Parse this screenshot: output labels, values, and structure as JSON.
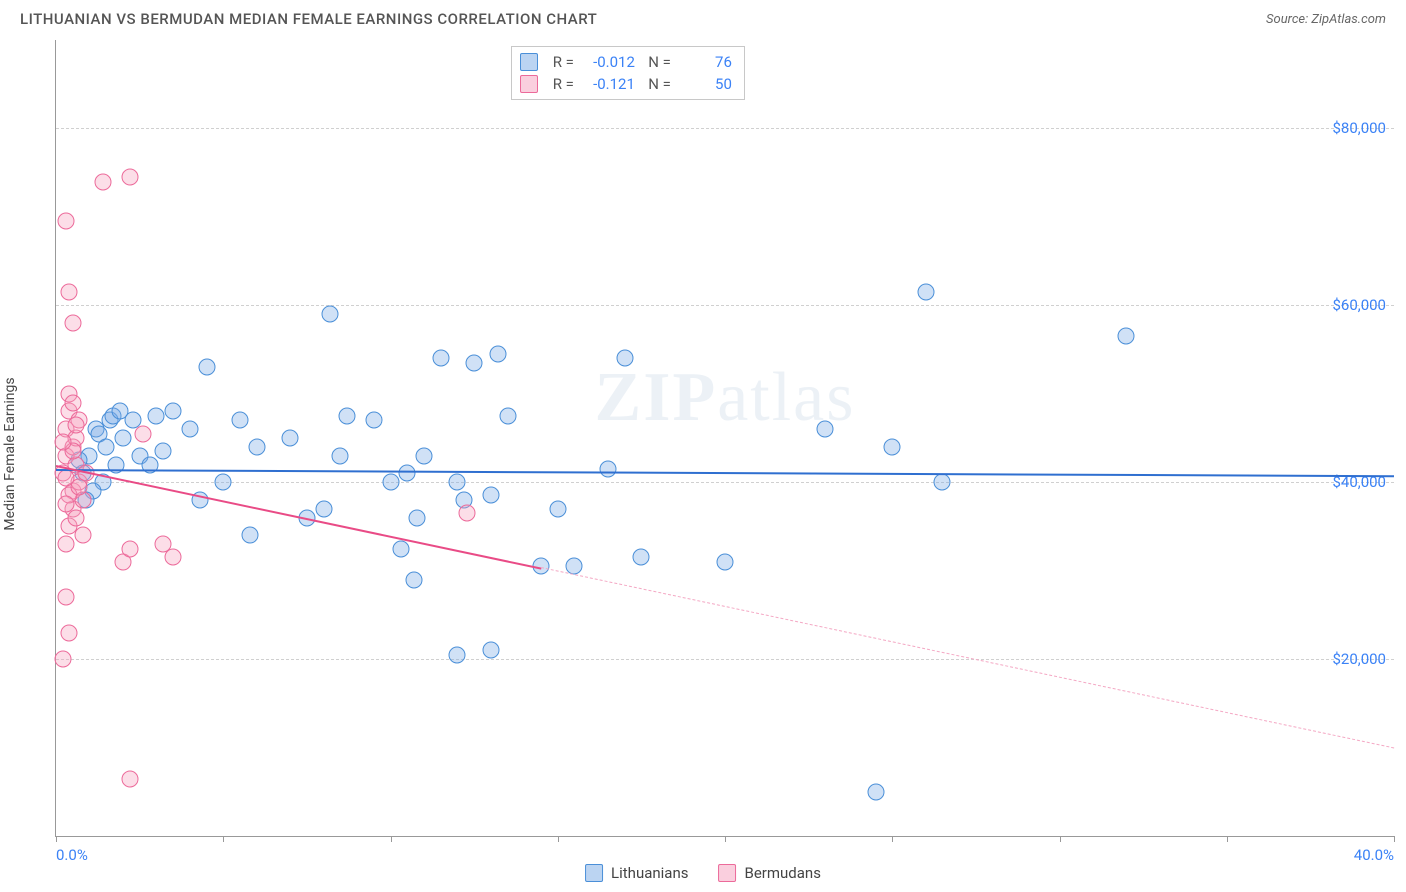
{
  "header": {
    "title": "LITHUANIAN VS BERMUDAN MEDIAN FEMALE EARNINGS CORRELATION CHART",
    "source": "Source: ZipAtlas.com"
  },
  "chart": {
    "type": "scatter",
    "ylabel": "Median Female Earnings",
    "watermark": "ZIPatlas",
    "xlim": [
      0,
      40
    ],
    "ylim": [
      0,
      90000
    ],
    "yticks": [
      20000,
      40000,
      60000,
      80000
    ],
    "ytick_labels": [
      "$20,000",
      "$40,000",
      "$60,000",
      "$80,000"
    ],
    "xticks": [
      0,
      5,
      10,
      15,
      20,
      25,
      30,
      35,
      40
    ],
    "xtick_labels_shown": {
      "0": "0.0%",
      "40": "40.0%"
    },
    "background_color": "#ffffff",
    "grid_color": "#d0d0d0",
    "marker_size": 17,
    "series": [
      {
        "key": "lithuanians",
        "label": "Lithuanians",
        "color_fill": "rgba(120,170,230,0.35)",
        "color_stroke": "#4a8fd8",
        "reg_color": "#2f6fd0",
        "R": "-0.012",
        "N": "76",
        "reg": {
          "x1": 0,
          "y1": 41500,
          "x2": 40,
          "y2": 40800,
          "solid_until_x": 40
        },
        "points": [
          [
            0.8,
            41000
          ],
          [
            1.0,
            43000
          ],
          [
            1.2,
            46000
          ],
          [
            1.3,
            45500
          ],
          [
            1.5,
            44000
          ],
          [
            1.6,
            47000
          ],
          [
            1.8,
            42000
          ],
          [
            1.4,
            40000
          ],
          [
            1.1,
            39000
          ],
          [
            0.9,
            38000
          ],
          [
            0.7,
            42500
          ],
          [
            1.7,
            47500
          ],
          [
            1.9,
            48000
          ],
          [
            2.0,
            45000
          ],
          [
            2.3,
            47000
          ],
          [
            2.5,
            43000
          ],
          [
            2.8,
            42000
          ],
          [
            3.0,
            47500
          ],
          [
            3.2,
            43500
          ],
          [
            3.5,
            48000
          ],
          [
            4.0,
            46000
          ],
          [
            4.3,
            38000
          ],
          [
            4.5,
            53000
          ],
          [
            5.0,
            40000
          ],
          [
            5.5,
            47000
          ],
          [
            5.8,
            34000
          ],
          [
            6.0,
            44000
          ],
          [
            7.0,
            45000
          ],
          [
            7.5,
            36000
          ],
          [
            8.0,
            37000
          ],
          [
            8.2,
            59000
          ],
          [
            8.5,
            43000
          ],
          [
            8.7,
            47500
          ],
          [
            9.5,
            47000
          ],
          [
            10.0,
            40000
          ],
          [
            10.3,
            32500
          ],
          [
            10.5,
            41000
          ],
          [
            10.8,
            36000
          ],
          [
            11.0,
            43000
          ],
          [
            10.7,
            29000
          ],
          [
            11.5,
            54000
          ],
          [
            12.0,
            40000
          ],
          [
            12.2,
            38000
          ],
          [
            12.5,
            53500
          ],
          [
            13.0,
            38500
          ],
          [
            13.2,
            54500
          ],
          [
            13.5,
            47500
          ],
          [
            14.5,
            30500
          ],
          [
            15.0,
            37000
          ],
          [
            15.5,
            30500
          ],
          [
            12.0,
            20500
          ],
          [
            13.0,
            21000
          ],
          [
            16.5,
            41500
          ],
          [
            17.0,
            54000
          ],
          [
            17.5,
            31500
          ],
          [
            20.0,
            31000
          ],
          [
            23.0,
            46000
          ],
          [
            25.0,
            44000
          ],
          [
            26.0,
            61500
          ],
          [
            26.5,
            40000
          ],
          [
            32.0,
            56500
          ],
          [
            24.5,
            5000
          ]
        ]
      },
      {
        "key": "bermudans",
        "label": "Bermudans",
        "color_fill": "rgba(245,160,190,0.35)",
        "color_stroke": "#ec6a9a",
        "reg_color": "#e94b86",
        "R": "-0.121",
        "N": "50",
        "reg": {
          "x1": 0,
          "y1": 42000,
          "x2": 40,
          "y2": 10000,
          "solid_until_x": 14.5
        },
        "points": [
          [
            0.2,
            41000
          ],
          [
            0.3,
            43000
          ],
          [
            0.3,
            46000
          ],
          [
            0.4,
            48000
          ],
          [
            0.4,
            50000
          ],
          [
            0.5,
            44000
          ],
          [
            0.5,
            39000
          ],
          [
            0.5,
            37000
          ],
          [
            0.6,
            42000
          ],
          [
            0.6,
            45000
          ],
          [
            0.7,
            47000
          ],
          [
            0.7,
            40000
          ],
          [
            0.8,
            38000
          ],
          [
            0.4,
            35000
          ],
          [
            0.3,
            33000
          ],
          [
            0.5,
            49000
          ],
          [
            0.6,
            36000
          ],
          [
            0.8,
            34000
          ],
          [
            0.9,
            41000
          ],
          [
            0.3,
            40500
          ],
          [
            0.4,
            38500
          ],
          [
            0.5,
            43500
          ],
          [
            0.6,
            46500
          ],
          [
            0.2,
            44500
          ],
          [
            0.3,
            37500
          ],
          [
            0.7,
            39500
          ],
          [
            0.5,
            58000
          ],
          [
            0.4,
            61500
          ],
          [
            0.3,
            69500
          ],
          [
            1.4,
            74000
          ],
          [
            2.2,
            74500
          ],
          [
            2.0,
            31000
          ],
          [
            2.2,
            32500
          ],
          [
            2.6,
            45500
          ],
          [
            3.2,
            33000
          ],
          [
            3.5,
            31500
          ],
          [
            0.3,
            27000
          ],
          [
            0.4,
            23000
          ],
          [
            0.2,
            20000
          ],
          [
            2.2,
            6500
          ],
          [
            12.3,
            36500
          ]
        ]
      }
    ],
    "stats_box": {
      "rows": [
        {
          "swatch": "blue",
          "R_label": "R =",
          "R": "-0.012",
          "N_label": "N =",
          "N": "76"
        },
        {
          "swatch": "pink",
          "R_label": "R =",
          "R": "-0.121",
          "N_label": "N =",
          "N": "50"
        }
      ]
    },
    "bottom_legend": [
      {
        "swatch": "blue",
        "label": "Lithuanians"
      },
      {
        "swatch": "pink",
        "label": "Bermudans"
      }
    ]
  }
}
